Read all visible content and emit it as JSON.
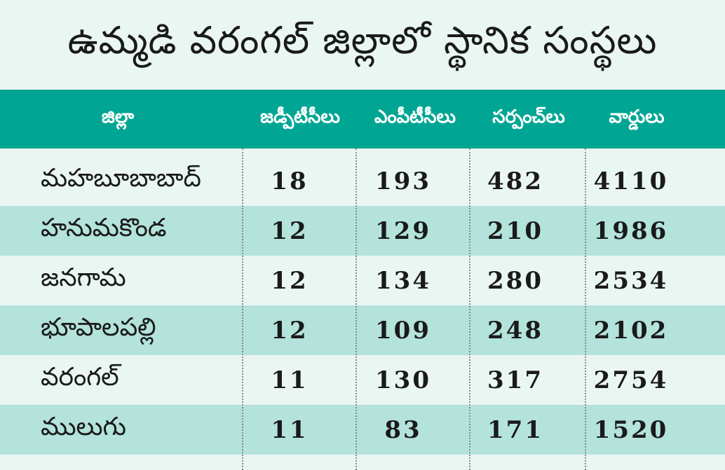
{
  "title": "ఉమ్మడి వరంగల్ జిల్లాలో స్థానిక సంస్థలు",
  "columns": [
    "జిల్లా",
    "జడ్పీటీసీలు",
    "ఎంపీటీసీలు",
    "సర్పంచ్‌లు",
    "వార్డులు"
  ],
  "rows": [
    [
      "మహబూబాబాద్",
      "18",
      "193",
      "482",
      "4110"
    ],
    [
      "హనుమకొండ",
      "12",
      "129",
      "210",
      "1986"
    ],
    [
      "జనగామ",
      "12",
      "134",
      "280",
      "2534"
    ],
    [
      "భూపాలపల్లి",
      "12",
      "109",
      "248",
      "2102"
    ],
    [
      "వరంగల్",
      "11",
      "130",
      "317",
      "2754"
    ],
    [
      "ములుగు",
      "11",
      "83",
      "171",
      "1520"
    ]
  ],
  "colors": {
    "header": "#00a693",
    "band": "#b3e3da",
    "background": "#eaf6f2"
  }
}
